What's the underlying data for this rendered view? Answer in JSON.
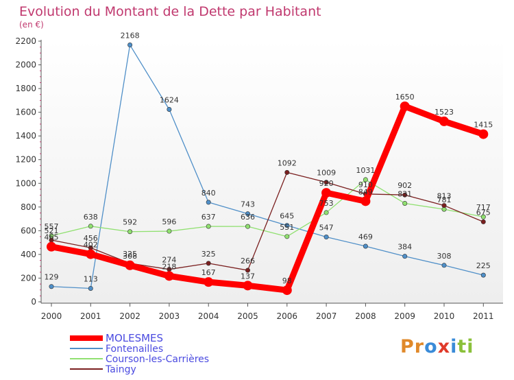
{
  "chart_data": {
    "type": "line",
    "title": "Evolution du Montant de la Dette par Habitant",
    "subtitle": "(en €)",
    "x": [
      "2000",
      "2001",
      "2002",
      "2003",
      "2004",
      "2005",
      "2006",
      "2007",
      "2008",
      "2009",
      "2010",
      "2011"
    ],
    "ylim": [
      0,
      2200
    ],
    "yticks": [
      0,
      200,
      400,
      600,
      800,
      1000,
      1200,
      1400,
      1600,
      1800,
      2000,
      2200
    ],
    "grid": false,
    "legend_placement": "bottom-left",
    "series": [
      {
        "name": "MOLESMES",
        "color": "#ff0000",
        "values": [
          465,
          402,
          308,
          218,
          167,
          137,
          98,
          920,
          849,
          1650,
          1523,
          1415
        ]
      },
      {
        "name": "Fontenailles",
        "color": "#4f8fc8",
        "values": [
          129,
          113,
          2168,
          1624,
          840,
          743,
          645,
          547,
          469,
          384,
          308,
          225
        ]
      },
      {
        "name": "Courson-les-Carrières",
        "color": "#90e070",
        "values": [
          557,
          638,
          592,
          596,
          637,
          636,
          551,
          753,
          1031,
          831,
          781,
          717
        ]
      },
      {
        "name": "Taingy",
        "color": "#7a1f1f",
        "values": [
          521,
          456,
          325,
          274,
          325,
          266,
          1092,
          1009,
          910,
          902,
          813,
          675
        ]
      }
    ]
  },
  "logo": {
    "letters": [
      {
        "ch": "P",
        "color": "#e0892a"
      },
      {
        "ch": "r",
        "color": "#e0892a"
      },
      {
        "ch": "o",
        "color": "#3a8bd8"
      },
      {
        "ch": "x",
        "color": "#e03a2a"
      },
      {
        "ch": "i",
        "color": "#3a8bd8"
      },
      {
        "ch": "t",
        "color": "#8ac03a"
      },
      {
        "ch": "i",
        "color": "#8ac03a"
      }
    ]
  }
}
